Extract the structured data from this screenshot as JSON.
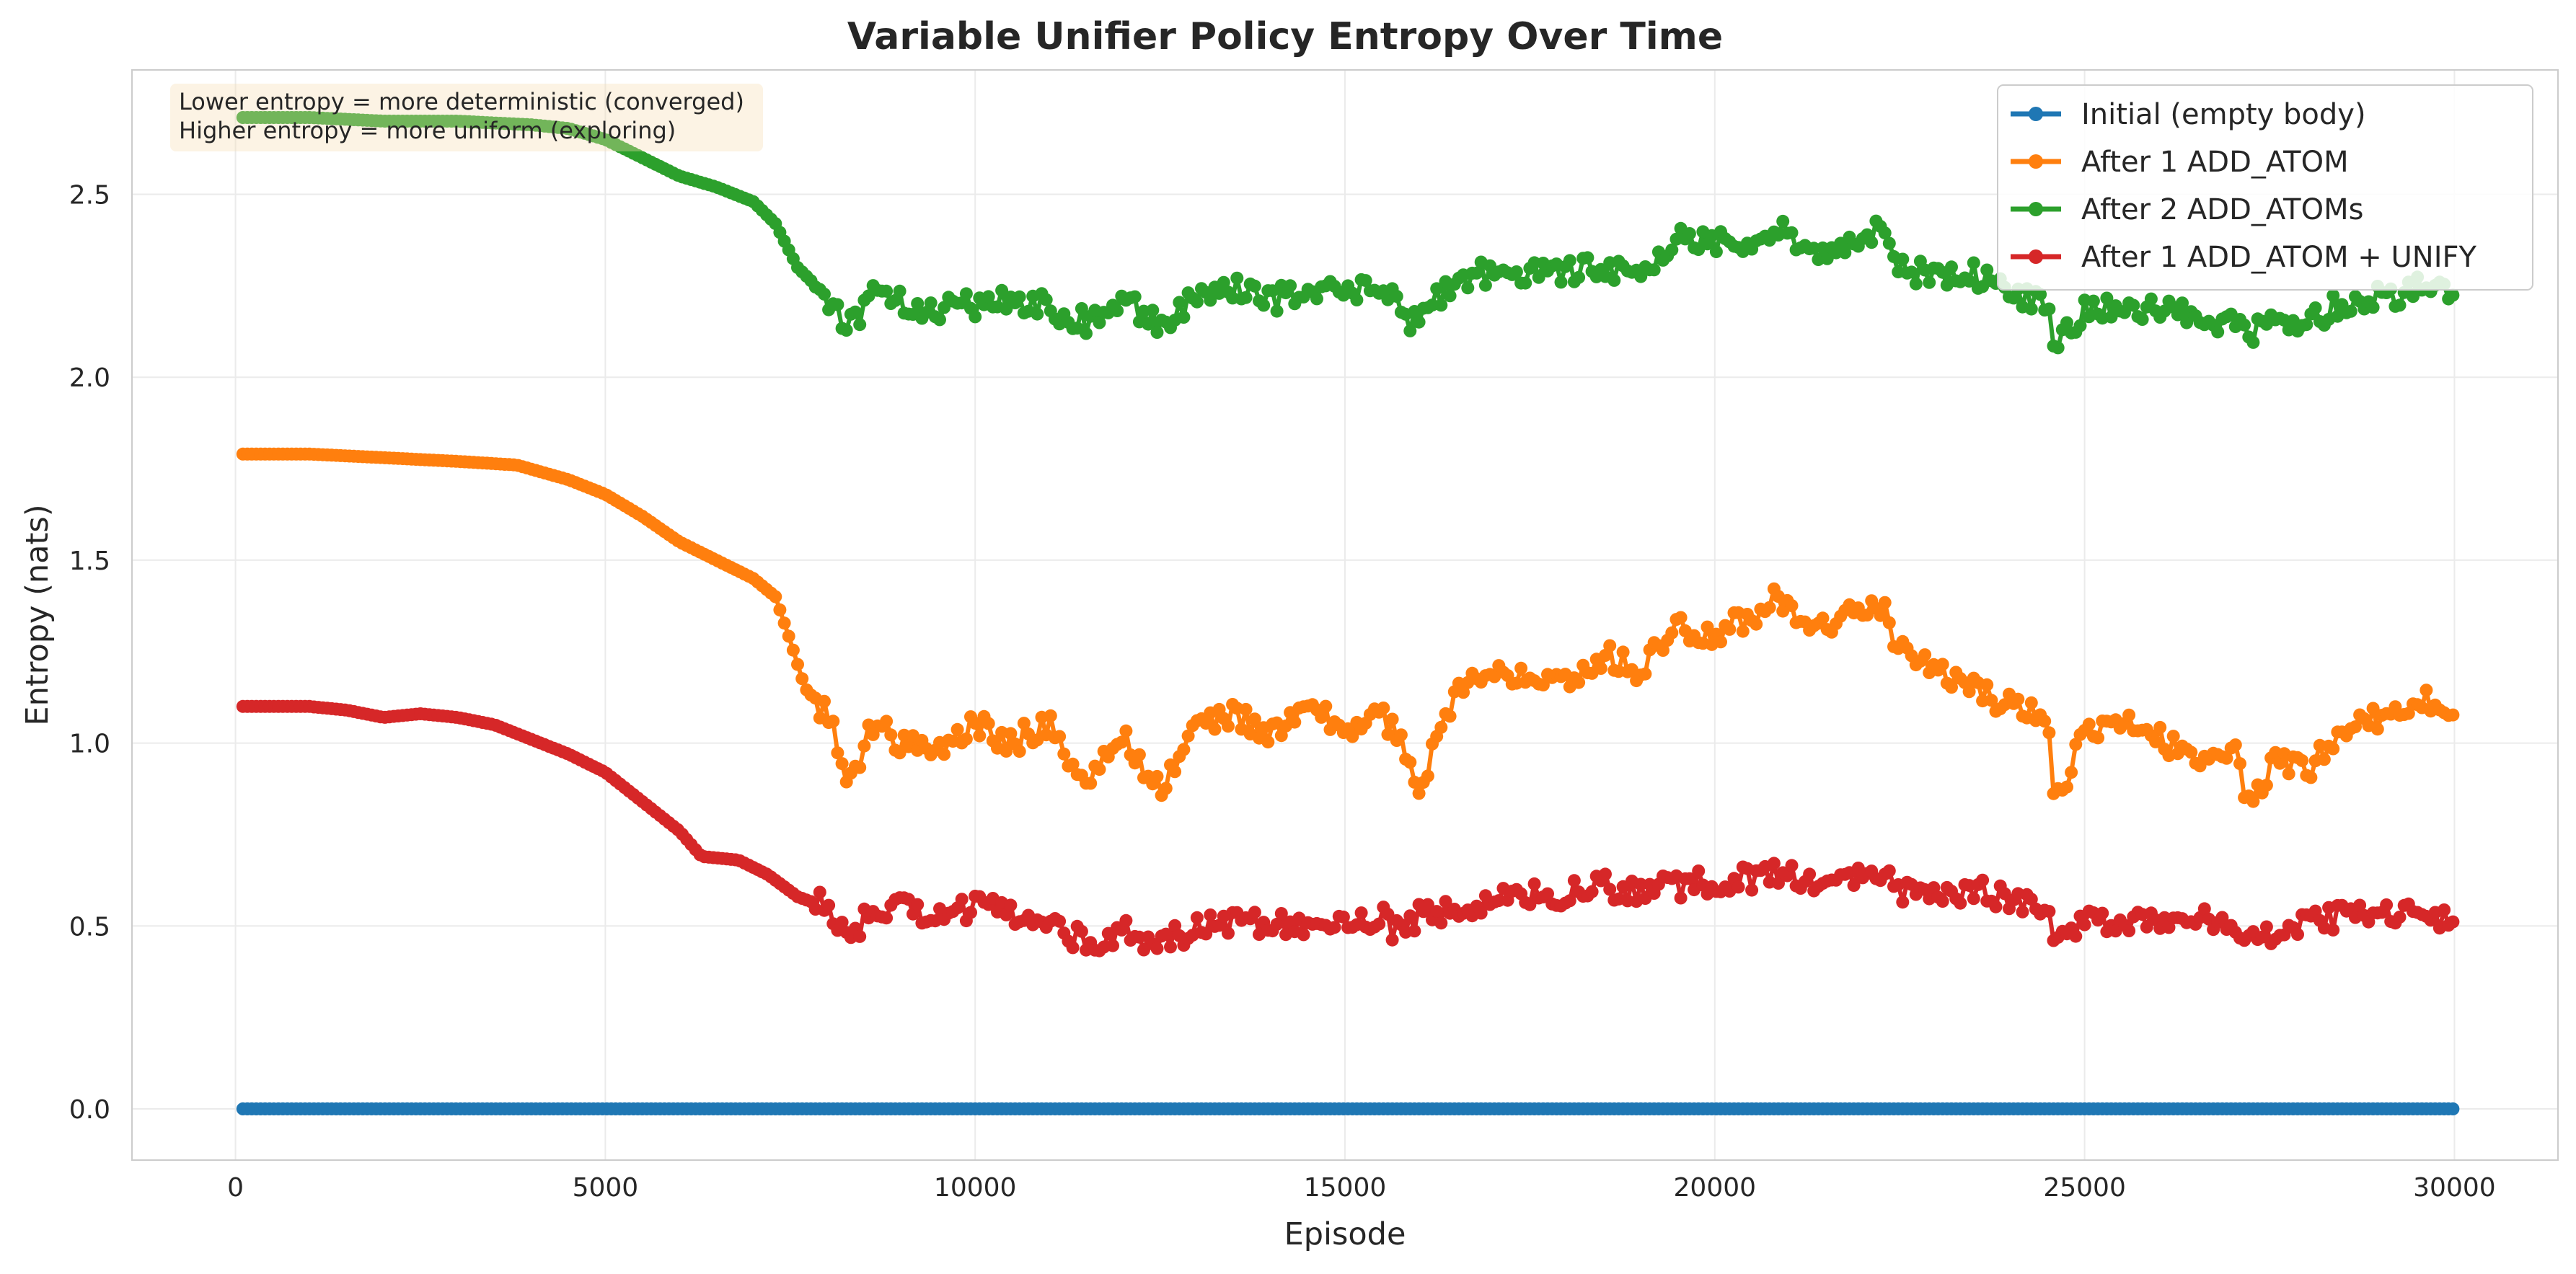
{
  "chart_data": {
    "type": "line",
    "title": "Variable Unifier Policy Entropy Over Time",
    "xlabel": "Episode",
    "ylabel": "Entropy (nats)",
    "xlim": [
      -1400,
      31400
    ],
    "ylim": [
      -0.14,
      2.84
    ],
    "xticks": [
      0,
      5000,
      10000,
      15000,
      20000,
      25000,
      30000
    ],
    "yticks": [
      0.0,
      0.5,
      1.0,
      1.5,
      2.0,
      2.5
    ],
    "grid": true,
    "legend_position": "top-right",
    "annotation": [
      "Lower entropy = more deterministic (converged)",
      "Higher entropy = more uniform (exploring)"
    ],
    "series": [
      {
        "name": "Initial (empty body)",
        "color": "#1f77b4",
        "points": [
          [
            100,
            0.0
          ],
          [
            30000,
            0.0
          ]
        ]
      },
      {
        "name": "After 1 ADD_ATOM",
        "color": "#ff7f0e",
        "points": [
          [
            100,
            1.79
          ],
          [
            1000,
            1.79
          ],
          [
            2000,
            1.78
          ],
          [
            3000,
            1.77
          ],
          [
            3800,
            1.76
          ],
          [
            4500,
            1.72
          ],
          [
            5000,
            1.68
          ],
          [
            5500,
            1.62
          ],
          [
            6000,
            1.55
          ],
          [
            6500,
            1.5
          ],
          [
            7000,
            1.45
          ],
          [
            7300,
            1.4
          ],
          [
            7500,
            1.28
          ],
          [
            7700,
            1.15
          ],
          [
            8000,
            1.08
          ],
          [
            8300,
            0.88
          ],
          [
            8600,
            1.06
          ],
          [
            9000,
            1.0
          ],
          [
            9500,
            0.98
          ],
          [
            10000,
            1.05
          ],
          [
            10500,
            1.0
          ],
          [
            11000,
            1.06
          ],
          [
            11500,
            0.88
          ],
          [
            12000,
            1.02
          ],
          [
            12500,
            0.87
          ],
          [
            13000,
            1.05
          ],
          [
            13500,
            1.08
          ],
          [
            14000,
            1.02
          ],
          [
            14500,
            1.1
          ],
          [
            15000,
            1.03
          ],
          [
            15500,
            1.08
          ],
          [
            15800,
            0.98
          ],
          [
            16000,
            0.88
          ],
          [
            16500,
            1.15
          ],
          [
            17000,
            1.18
          ],
          [
            17500,
            1.2
          ],
          [
            18000,
            1.18
          ],
          [
            18500,
            1.24
          ],
          [
            19000,
            1.2
          ],
          [
            19500,
            1.32
          ],
          [
            20000,
            1.3
          ],
          [
            20500,
            1.35
          ],
          [
            20900,
            1.4
          ],
          [
            21200,
            1.3
          ],
          [
            21600,
            1.33
          ],
          [
            22000,
            1.37
          ],
          [
            22200,
            1.4
          ],
          [
            22500,
            1.25
          ],
          [
            23000,
            1.2
          ],
          [
            23500,
            1.15
          ],
          [
            24000,
            1.1
          ],
          [
            24500,
            1.08
          ],
          [
            24600,
            0.84
          ],
          [
            25000,
            1.02
          ],
          [
            25500,
            1.05
          ],
          [
            26000,
            1.02
          ],
          [
            26500,
            0.95
          ],
          [
            27000,
            1.0
          ],
          [
            27200,
            0.82
          ],
          [
            27600,
            0.97
          ],
          [
            28000,
            0.92
          ],
          [
            28500,
            1.05
          ],
          [
            29000,
            1.07
          ],
          [
            29500,
            1.12
          ],
          [
            30000,
            1.08
          ]
        ]
      },
      {
        "name": "After 2 ADD_ATOMs",
        "color": "#2ca02c",
        "points": [
          [
            100,
            2.71
          ],
          [
            1000,
            2.71
          ],
          [
            2000,
            2.7
          ],
          [
            3000,
            2.7
          ],
          [
            4000,
            2.69
          ],
          [
            4500,
            2.68
          ],
          [
            5000,
            2.65
          ],
          [
            5500,
            2.6
          ],
          [
            6000,
            2.55
          ],
          [
            6500,
            2.52
          ],
          [
            7000,
            2.48
          ],
          [
            7300,
            2.42
          ],
          [
            7600,
            2.3
          ],
          [
            8000,
            2.22
          ],
          [
            8300,
            2.14
          ],
          [
            8600,
            2.22
          ],
          [
            9000,
            2.2
          ],
          [
            9500,
            2.18
          ],
          [
            10000,
            2.2
          ],
          [
            10500,
            2.21
          ],
          [
            11000,
            2.19
          ],
          [
            11500,
            2.15
          ],
          [
            12000,
            2.21
          ],
          [
            12500,
            2.14
          ],
          [
            13000,
            2.22
          ],
          [
            13500,
            2.24
          ],
          [
            14000,
            2.21
          ],
          [
            14500,
            2.24
          ],
          [
            15000,
            2.23
          ],
          [
            15500,
            2.25
          ],
          [
            15900,
            2.14
          ],
          [
            16500,
            2.27
          ],
          [
            17000,
            2.29
          ],
          [
            17500,
            2.28
          ],
          [
            18000,
            2.29
          ],
          [
            18500,
            2.31
          ],
          [
            19000,
            2.26
          ],
          [
            19500,
            2.38
          ],
          [
            20000,
            2.37
          ],
          [
            20500,
            2.38
          ],
          [
            20900,
            2.41
          ],
          [
            21300,
            2.33
          ],
          [
            21700,
            2.36
          ],
          [
            22000,
            2.38
          ],
          [
            22200,
            2.41
          ],
          [
            22500,
            2.3
          ],
          [
            23000,
            2.27
          ],
          [
            23500,
            2.28
          ],
          [
            24000,
            2.23
          ],
          [
            24500,
            2.2
          ],
          [
            24600,
            2.1
          ],
          [
            25000,
            2.18
          ],
          [
            25500,
            2.19
          ],
          [
            26000,
            2.18
          ],
          [
            26500,
            2.17
          ],
          [
            27000,
            2.15
          ],
          [
            27200,
            2.1
          ],
          [
            27600,
            2.18
          ],
          [
            28000,
            2.14
          ],
          [
            28500,
            2.21
          ],
          [
            29000,
            2.22
          ],
          [
            29500,
            2.24
          ],
          [
            30000,
            2.22
          ]
        ]
      },
      {
        "name": "After 1 ADD_ATOM + UNIFY",
        "color": "#d62728",
        "points": [
          [
            100,
            1.1
          ],
          [
            1000,
            1.1
          ],
          [
            1500,
            1.09
          ],
          [
            2000,
            1.07
          ],
          [
            2500,
            1.08
          ],
          [
            3000,
            1.07
          ],
          [
            3500,
            1.05
          ],
          [
            4000,
            1.01
          ],
          [
            4500,
            0.97
          ],
          [
            5000,
            0.92
          ],
          [
            5500,
            0.84
          ],
          [
            6000,
            0.76
          ],
          [
            6300,
            0.69
          ],
          [
            6800,
            0.68
          ],
          [
            7200,
            0.64
          ],
          [
            7600,
            0.58
          ],
          [
            8000,
            0.55
          ],
          [
            8300,
            0.47
          ],
          [
            8600,
            0.54
          ],
          [
            9000,
            0.55
          ],
          [
            9500,
            0.53
          ],
          [
            10000,
            0.55
          ],
          [
            10500,
            0.54
          ],
          [
            11000,
            0.52
          ],
          [
            11500,
            0.45
          ],
          [
            12000,
            0.49
          ],
          [
            12500,
            0.45
          ],
          [
            13000,
            0.5
          ],
          [
            13500,
            0.51
          ],
          [
            14000,
            0.51
          ],
          [
            14500,
            0.51
          ],
          [
            15000,
            0.52
          ],
          [
            15500,
            0.52
          ],
          [
            15800,
            0.47
          ],
          [
            16000,
            0.53
          ],
          [
            16500,
            0.54
          ],
          [
            17000,
            0.57
          ],
          [
            17500,
            0.58
          ],
          [
            18000,
            0.59
          ],
          [
            18500,
            0.61
          ],
          [
            19000,
            0.59
          ],
          [
            19500,
            0.61
          ],
          [
            20000,
            0.62
          ],
          [
            20500,
            0.63
          ],
          [
            20900,
            0.65
          ],
          [
            21300,
            0.61
          ],
          [
            21700,
            0.63
          ],
          [
            22000,
            0.64
          ],
          [
            22200,
            0.64
          ],
          [
            22500,
            0.6
          ],
          [
            23000,
            0.59
          ],
          [
            23500,
            0.6
          ],
          [
            24000,
            0.57
          ],
          [
            24500,
            0.56
          ],
          [
            24600,
            0.47
          ],
          [
            25000,
            0.51
          ],
          [
            25500,
            0.52
          ],
          [
            26000,
            0.52
          ],
          [
            26500,
            0.53
          ],
          [
            27000,
            0.5
          ],
          [
            27200,
            0.45
          ],
          [
            27600,
            0.49
          ],
          [
            28000,
            0.5
          ],
          [
            28500,
            0.53
          ],
          [
            29000,
            0.53
          ],
          [
            29500,
            0.53
          ],
          [
            30000,
            0.52
          ]
        ]
      }
    ]
  }
}
